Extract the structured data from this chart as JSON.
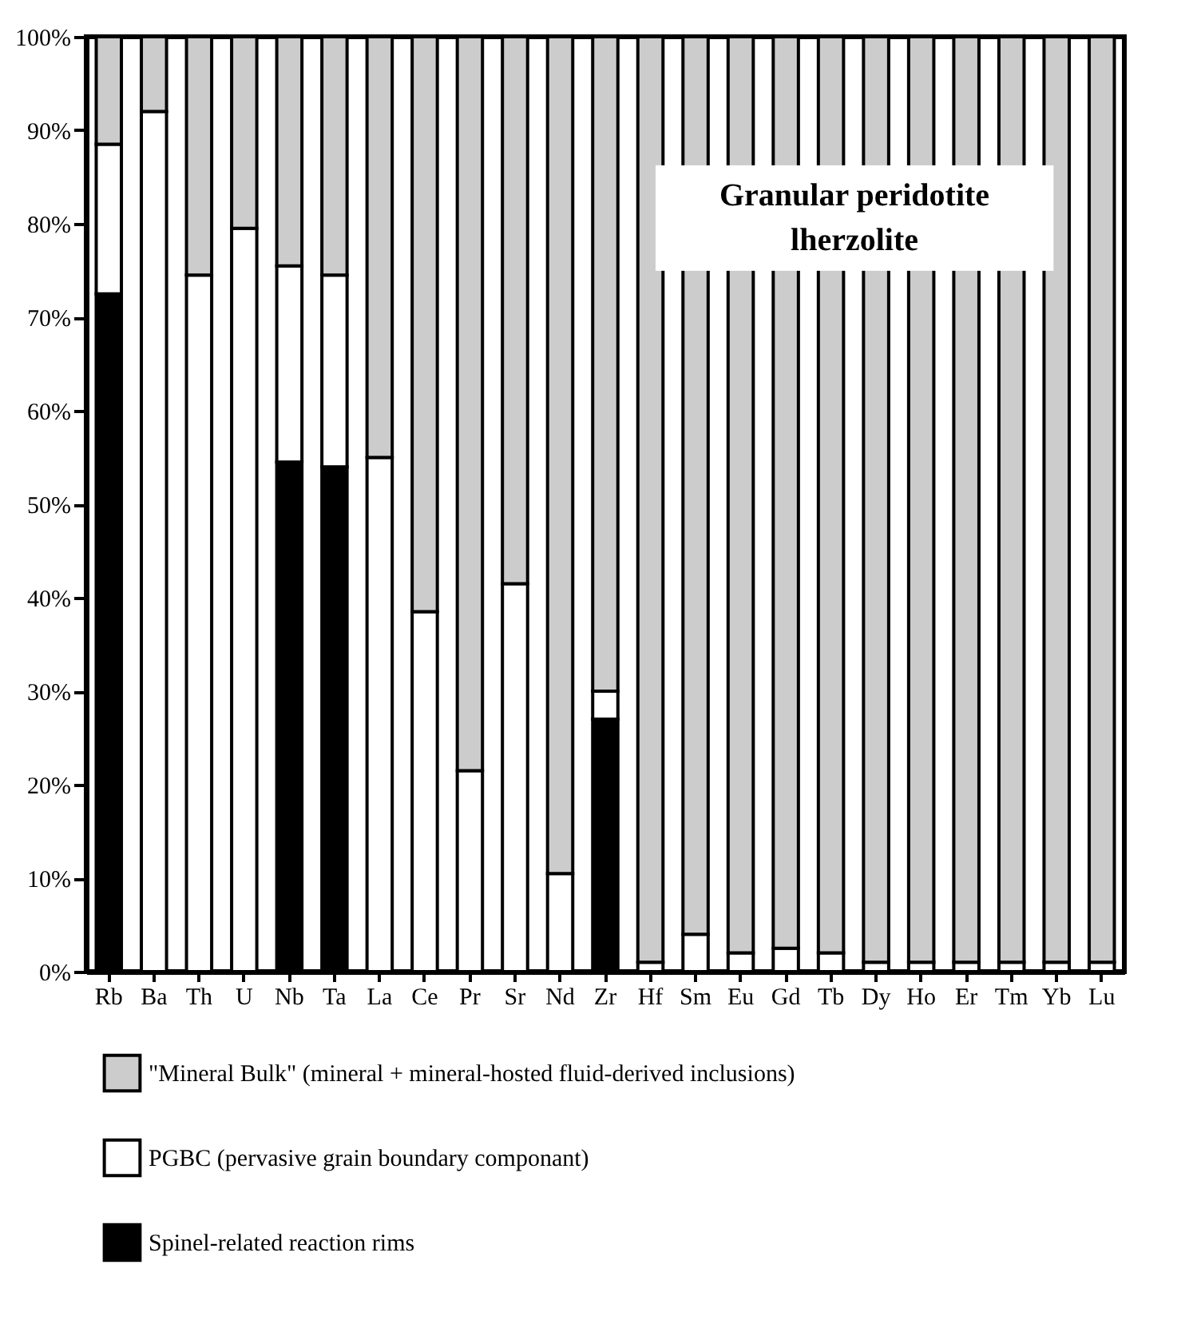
{
  "chart_data": {
    "type": "bar",
    "stacked": true,
    "categories": [
      "Rb",
      "Ba",
      "Th",
      "U",
      "Nb",
      "Ta",
      "La",
      "Ce",
      "Pr",
      "Sr",
      "Nd",
      "Zr",
      "Hf",
      "Sm",
      "Eu",
      "Gd",
      "Tb",
      "Dy",
      "Ho",
      "Er",
      "Tm",
      "Yb",
      "Lu"
    ],
    "series": [
      {
        "name": "Spinel-related reaction rims",
        "color": "#000000",
        "values": [
          72.5,
          null,
          null,
          null,
          54.5,
          54,
          null,
          null,
          null,
          null,
          null,
          27,
          null,
          null,
          null,
          null,
          null,
          null,
          null,
          null,
          null,
          null,
          null
        ]
      },
      {
        "name": "PGBC (pervasive grain boundary componant)",
        "color": "#ffffff",
        "values": [
          16,
          92,
          74.5,
          79.5,
          21,
          20.5,
          55,
          38.5,
          21.5,
          41.5,
          10.5,
          3,
          1,
          4,
          2,
          2.5,
          2,
          1,
          1,
          1,
          1,
          1,
          1
        ]
      },
      {
        "name": "\"Mineral Bulk\" (mineral + mineral-hosted fluid-derived inclusions)",
        "color": "#cccccc",
        "values": [
          11.5,
          8,
          25.5,
          20.5,
          24.5,
          25.5,
          45,
          61.5,
          78.5,
          58.5,
          89.5,
          70,
          99,
          96,
          98,
          97.5,
          98,
          99,
          99,
          99,
          99,
          99,
          99
        ]
      }
    ],
    "ylim": [
      0,
      100
    ],
    "yticks": [
      {
        "value": 0,
        "label": "0%"
      },
      {
        "value": 10,
        "label": "10%"
      },
      {
        "value": 20,
        "label": "20%"
      },
      {
        "value": 30,
        "label": "30%"
      },
      {
        "value": 40,
        "label": "40%"
      },
      {
        "value": 50,
        "label": "50%"
      },
      {
        "value": 60,
        "label": "60%"
      },
      {
        "value": 70,
        "label": "70%"
      },
      {
        "value": 80,
        "label": "80%"
      },
      {
        "value": 90,
        "label": "90%"
      },
      {
        "value": 100,
        "label": "100%"
      }
    ],
    "grid": false,
    "legend": "bottom",
    "annotations": [
      "Granular peridotite lherzolite"
    ]
  }
}
